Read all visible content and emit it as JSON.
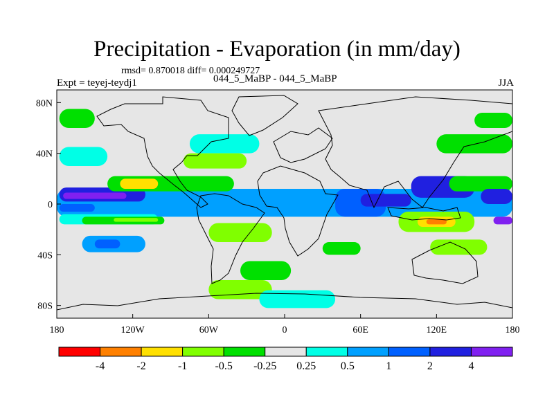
{
  "chart_data": {
    "type": "heatmap",
    "title": "Precipitation - Evaporation (in mm/day)",
    "stats_line": "rmsd= 0.870018 diff= 0.000249727",
    "experiment": "Expt = teyej-teydj1",
    "comparison": "044_5_MaBP - 044_5_MaBP",
    "season": "JJA",
    "xlim": [
      -180,
      180
    ],
    "ylim": [
      -90,
      90
    ],
    "x_ticks": [
      {
        "value": -180,
        "label": "180"
      },
      {
        "value": -120,
        "label": "120W"
      },
      {
        "value": -60,
        "label": "60W"
      },
      {
        "value": 0,
        "label": "0"
      },
      {
        "value": 60,
        "label": "60E"
      },
      {
        "value": 120,
        "label": "120E"
      },
      {
        "value": 180,
        "label": "180"
      }
    ],
    "y_ticks": [
      {
        "value": 80,
        "label": "80N"
      },
      {
        "value": 40,
        "label": "40N"
      },
      {
        "value": 0,
        "label": "0"
      },
      {
        "value": -40,
        "label": "40S"
      },
      {
        "value": -80,
        "label": "80S"
      }
    ],
    "colorbar": {
      "levels": [
        "-4",
        "-2",
        "-1",
        "-0.5",
        "-0.25",
        "0.25",
        "0.5",
        "1",
        "2",
        "4"
      ],
      "colors": [
        "#ff0000",
        "#ff8000",
        "#ffe000",
        "#80ff00",
        "#00e000",
        "#e6e6e6",
        "#00ffe6",
        "#00a0ff",
        "#0060ff",
        "#2020e0",
        "#8020f0"
      ]
    },
    "regions": [
      {
        "lon": [
          -180,
          180
        ],
        "lat": [
          -10,
          12
        ],
        "level": 7
      },
      {
        "lon": [
          -178,
          -110
        ],
        "lat": [
          2,
          13
        ],
        "level": 9
      },
      {
        "lon": [
          -175,
          -125
        ],
        "lat": [
          4,
          9
        ],
        "level": 10
      },
      {
        "lon": [
          -178,
          -150
        ],
        "lat": [
          -6,
          0
        ],
        "level": 8
      },
      {
        "lon": [
          -150,
          -85
        ],
        "lat": [
          -8,
          -1
        ],
        "level": 7
      },
      {
        "lon": [
          -178,
          -100
        ],
        "lat": [
          -16,
          -8
        ],
        "level": 6
      },
      {
        "lon": [
          -160,
          -95
        ],
        "lat": [
          -16,
          -10
        ],
        "level": 4
      },
      {
        "lon": [
          -135,
          -100
        ],
        "lat": [
          -14,
          -11
        ],
        "level": 3
      },
      {
        "lon": [
          -140,
          -40
        ],
        "lat": [
          10,
          22
        ],
        "level": 4
      },
      {
        "lon": [
          -130,
          -100
        ],
        "lat": [
          12,
          20
        ],
        "level": 2
      },
      {
        "lon": [
          -160,
          -110
        ],
        "lat": [
          -38,
          -25
        ],
        "level": 7
      },
      {
        "lon": [
          -150,
          -130
        ],
        "lat": [
          -35,
          -28
        ],
        "level": 8
      },
      {
        "lon": [
          -178,
          -150
        ],
        "lat": [
          60,
          75
        ],
        "level": 4
      },
      {
        "lon": [
          -178,
          -140
        ],
        "lat": [
          30,
          45
        ],
        "level": 6
      },
      {
        "lon": [
          -75,
          -20
        ],
        "lat": [
          40,
          55
        ],
        "level": 6
      },
      {
        "lon": [
          -80,
          -30
        ],
        "lat": [
          28,
          40
        ],
        "level": 3
      },
      {
        "lon": [
          -60,
          -10
        ],
        "lat": [
          -30,
          -15
        ],
        "level": 3
      },
      {
        "lon": [
          -35,
          5
        ],
        "lat": [
          -60,
          -45
        ],
        "level": 4
      },
      {
        "lon": [
          -60,
          -10
        ],
        "lat": [
          -75,
          -60
        ],
        "level": 3
      },
      {
        "lon": [
          30,
          60
        ],
        "lat": [
          -40,
          -30
        ],
        "level": 4
      },
      {
        "lon": [
          40,
          80
        ],
        "lat": [
          -10,
          12
        ],
        "level": 8
      },
      {
        "lon": [
          60,
          100
        ],
        "lat": [
          -2,
          8
        ],
        "level": 9
      },
      {
        "lon": [
          100,
          150
        ],
        "lat": [
          5,
          22
        ],
        "level": 9
      },
      {
        "lon": [
          90,
          150
        ],
        "lat": [
          -22,
          -6
        ],
        "level": 3
      },
      {
        "lon": [
          105,
          135
        ],
        "lat": [
          -18,
          -10
        ],
        "level": 2
      },
      {
        "lon": [
          112,
          128
        ],
        "lat": [
          -16,
          -12
        ],
        "level": 1
      },
      {
        "lon": [
          115,
          160
        ],
        "lat": [
          -40,
          -28
        ],
        "level": 3
      },
      {
        "lon": [
          130,
          180
        ],
        "lat": [
          10,
          22
        ],
        "level": 4
      },
      {
        "lon": [
          155,
          180
        ],
        "lat": [
          0,
          12
        ],
        "level": 9
      },
      {
        "lon": [
          165,
          180
        ],
        "lat": [
          -16,
          -10
        ],
        "level": 10
      },
      {
        "lon": [
          120,
          180
        ],
        "lat": [
          40,
          55
        ],
        "level": 4
      },
      {
        "lon": [
          150,
          180
        ],
        "lat": [
          60,
          72
        ],
        "level": 4
      },
      {
        "lon": [
          -20,
          40
        ],
        "lat": [
          -82,
          -68
        ],
        "level": 6
      }
    ]
  }
}
